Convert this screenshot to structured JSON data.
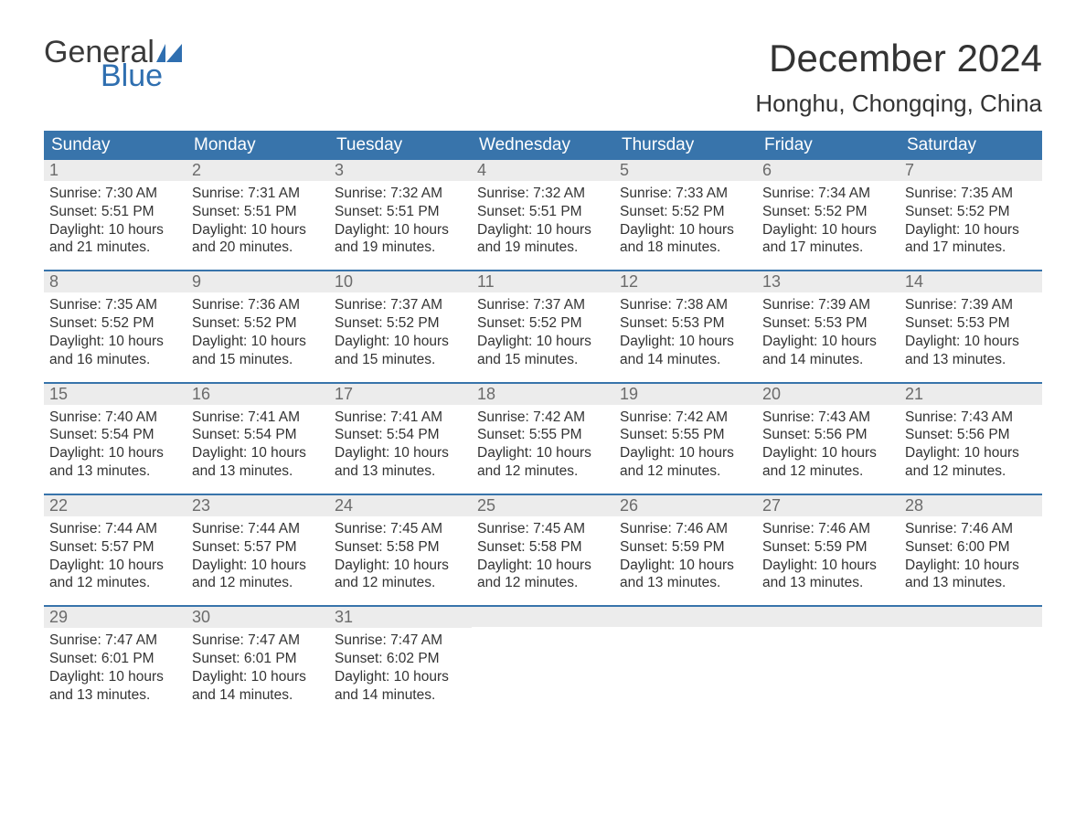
{
  "brand": {
    "word1": "General",
    "word2": "Blue",
    "flag_color": "#2f6fb0",
    "word1_color": "#3a3a3a"
  },
  "title": "December 2024",
  "location": "Honghu, Chongqing, China",
  "colors": {
    "header_bg": "#3874ab",
    "header_text": "#ffffff",
    "daynum_bg": "#ececec",
    "daynum_text": "#6b6b6b",
    "body_text": "#333333",
    "rule": "#3874ab",
    "page_bg": "#ffffff"
  },
  "dow": [
    "Sunday",
    "Monday",
    "Tuesday",
    "Wednesday",
    "Thursday",
    "Friday",
    "Saturday"
  ],
  "weeks": [
    [
      {
        "n": "1",
        "sr": "7:30 AM",
        "ss": "5:51 PM",
        "dl": "10 hours and 21 minutes."
      },
      {
        "n": "2",
        "sr": "7:31 AM",
        "ss": "5:51 PM",
        "dl": "10 hours and 20 minutes."
      },
      {
        "n": "3",
        "sr": "7:32 AM",
        "ss": "5:51 PM",
        "dl": "10 hours and 19 minutes."
      },
      {
        "n": "4",
        "sr": "7:32 AM",
        "ss": "5:51 PM",
        "dl": "10 hours and 19 minutes."
      },
      {
        "n": "5",
        "sr": "7:33 AM",
        "ss": "5:52 PM",
        "dl": "10 hours and 18 minutes."
      },
      {
        "n": "6",
        "sr": "7:34 AM",
        "ss": "5:52 PM",
        "dl": "10 hours and 17 minutes."
      },
      {
        "n": "7",
        "sr": "7:35 AM",
        "ss": "5:52 PM",
        "dl": "10 hours and 17 minutes."
      }
    ],
    [
      {
        "n": "8",
        "sr": "7:35 AM",
        "ss": "5:52 PM",
        "dl": "10 hours and 16 minutes."
      },
      {
        "n": "9",
        "sr": "7:36 AM",
        "ss": "5:52 PM",
        "dl": "10 hours and 15 minutes."
      },
      {
        "n": "10",
        "sr": "7:37 AM",
        "ss": "5:52 PM",
        "dl": "10 hours and 15 minutes."
      },
      {
        "n": "11",
        "sr": "7:37 AM",
        "ss": "5:52 PM",
        "dl": "10 hours and 15 minutes."
      },
      {
        "n": "12",
        "sr": "7:38 AM",
        "ss": "5:53 PM",
        "dl": "10 hours and 14 minutes."
      },
      {
        "n": "13",
        "sr": "7:39 AM",
        "ss": "5:53 PM",
        "dl": "10 hours and 14 minutes."
      },
      {
        "n": "14",
        "sr": "7:39 AM",
        "ss": "5:53 PM",
        "dl": "10 hours and 13 minutes."
      }
    ],
    [
      {
        "n": "15",
        "sr": "7:40 AM",
        "ss": "5:54 PM",
        "dl": "10 hours and 13 minutes."
      },
      {
        "n": "16",
        "sr": "7:41 AM",
        "ss": "5:54 PM",
        "dl": "10 hours and 13 minutes."
      },
      {
        "n": "17",
        "sr": "7:41 AM",
        "ss": "5:54 PM",
        "dl": "10 hours and 13 minutes."
      },
      {
        "n": "18",
        "sr": "7:42 AM",
        "ss": "5:55 PM",
        "dl": "10 hours and 12 minutes."
      },
      {
        "n": "19",
        "sr": "7:42 AM",
        "ss": "5:55 PM",
        "dl": "10 hours and 12 minutes."
      },
      {
        "n": "20",
        "sr": "7:43 AM",
        "ss": "5:56 PM",
        "dl": "10 hours and 12 minutes."
      },
      {
        "n": "21",
        "sr": "7:43 AM",
        "ss": "5:56 PM",
        "dl": "10 hours and 12 minutes."
      }
    ],
    [
      {
        "n": "22",
        "sr": "7:44 AM",
        "ss": "5:57 PM",
        "dl": "10 hours and 12 minutes."
      },
      {
        "n": "23",
        "sr": "7:44 AM",
        "ss": "5:57 PM",
        "dl": "10 hours and 12 minutes."
      },
      {
        "n": "24",
        "sr": "7:45 AM",
        "ss": "5:58 PM",
        "dl": "10 hours and 12 minutes."
      },
      {
        "n": "25",
        "sr": "7:45 AM",
        "ss": "5:58 PM",
        "dl": "10 hours and 12 minutes."
      },
      {
        "n": "26",
        "sr": "7:46 AM",
        "ss": "5:59 PM",
        "dl": "10 hours and 13 minutes."
      },
      {
        "n": "27",
        "sr": "7:46 AM",
        "ss": "5:59 PM",
        "dl": "10 hours and 13 minutes."
      },
      {
        "n": "28",
        "sr": "7:46 AM",
        "ss": "6:00 PM",
        "dl": "10 hours and 13 minutes."
      }
    ],
    [
      {
        "n": "29",
        "sr": "7:47 AM",
        "ss": "6:01 PM",
        "dl": "10 hours and 13 minutes."
      },
      {
        "n": "30",
        "sr": "7:47 AM",
        "ss": "6:01 PM",
        "dl": "10 hours and 14 minutes."
      },
      {
        "n": "31",
        "sr": "7:47 AM",
        "ss": "6:02 PM",
        "dl": "10 hours and 14 minutes."
      },
      null,
      null,
      null,
      null
    ]
  ],
  "labels": {
    "sunrise": "Sunrise:",
    "sunset": "Sunset:",
    "daylight": "Daylight:"
  }
}
